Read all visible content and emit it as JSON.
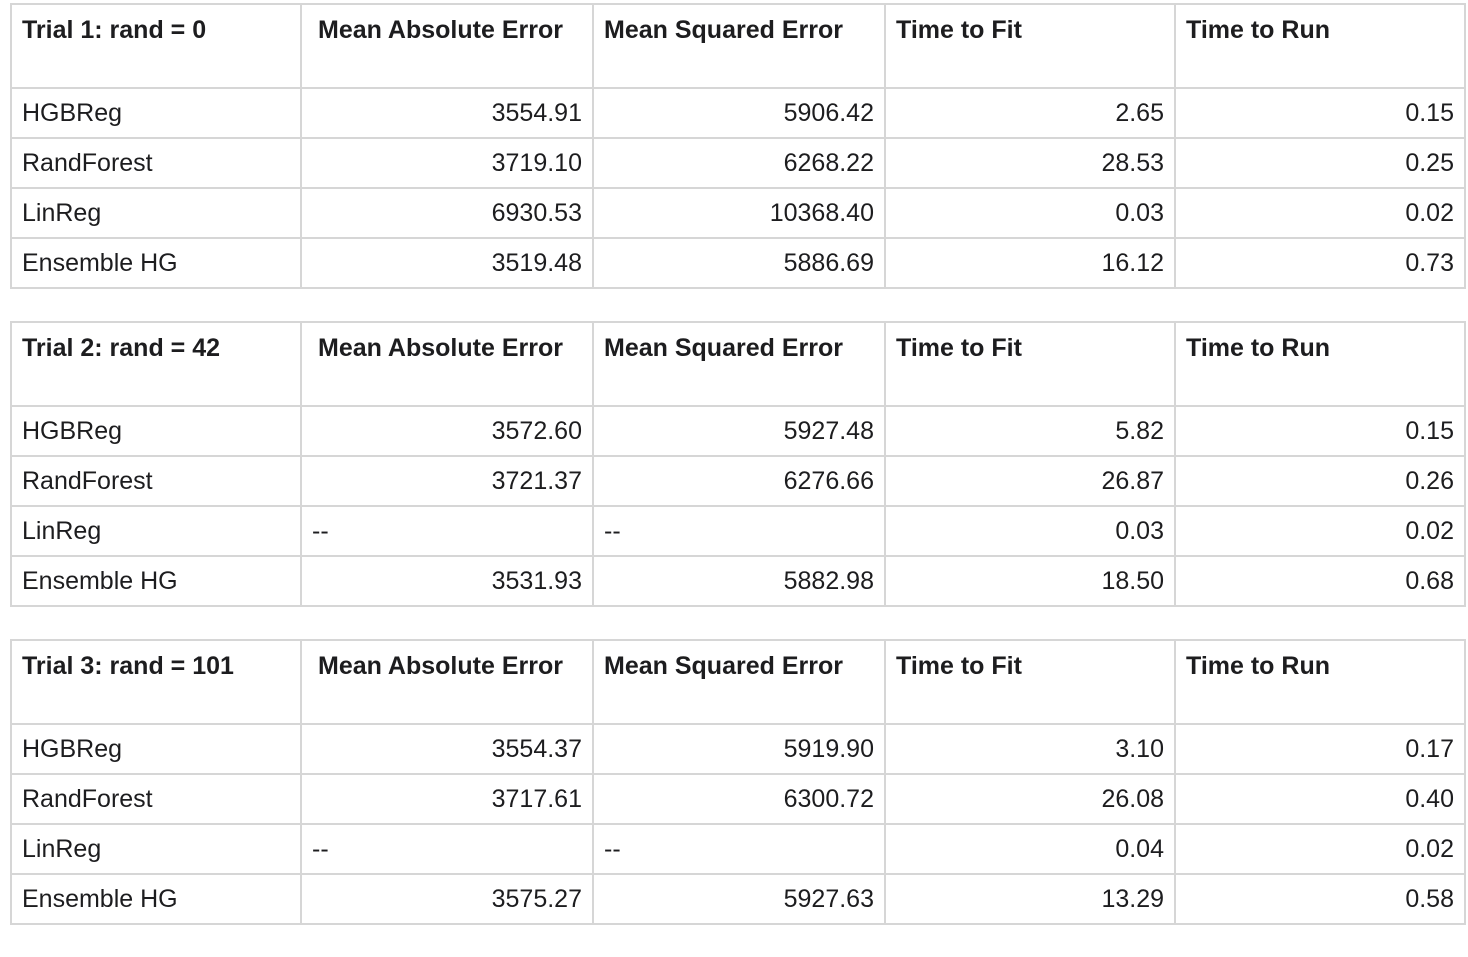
{
  "columns": [
    "Mean Absolute Error",
    "Mean Squared Error",
    "Time to Fit",
    "Time to Run"
  ],
  "trials": [
    {
      "title": "Trial 1: rand = 0",
      "rows": [
        {
          "model": "HGBReg",
          "values": [
            "3554.91",
            "5906.42",
            "2.65",
            "0.15"
          ]
        },
        {
          "model": "RandForest",
          "values": [
            "3719.10",
            "6268.22",
            "28.53",
            "0.25"
          ]
        },
        {
          "model": "LinReg",
          "values": [
            "6930.53",
            "10368.40",
            "0.03",
            "0.02"
          ]
        },
        {
          "model": "Ensemble HG",
          "values": [
            "3519.48",
            "5886.69",
            "16.12",
            "0.73"
          ]
        }
      ]
    },
    {
      "title": "Trial 2: rand = 42",
      "rows": [
        {
          "model": "HGBReg",
          "values": [
            "3572.60",
            "5927.48",
            "5.82",
            "0.15"
          ]
        },
        {
          "model": "RandForest",
          "values": [
            "3721.37",
            "6276.66",
            "26.87",
            "0.26"
          ]
        },
        {
          "model": "LinReg",
          "values": [
            "--",
            "--",
            "0.03",
            "0.02"
          ]
        },
        {
          "model": "Ensemble HG",
          "values": [
            "3531.93",
            "5882.98",
            "18.50",
            "0.68"
          ]
        }
      ]
    },
    {
      "title": "Trial 3:  rand = 101",
      "rows": [
        {
          "model": "HGBReg",
          "values": [
            "3554.37",
            "5919.90",
            "3.10",
            "0.17"
          ]
        },
        {
          "model": "RandForest",
          "values": [
            "3717.61",
            "6300.72",
            "26.08",
            "0.40"
          ]
        },
        {
          "model": "LinReg",
          "values": [
            "--",
            "--",
            "0.04",
            "0.02"
          ]
        },
        {
          "model": "Ensemble HG",
          "values": [
            "3575.27",
            "5927.63",
            "13.29",
            "0.58"
          ]
        }
      ]
    }
  ]
}
